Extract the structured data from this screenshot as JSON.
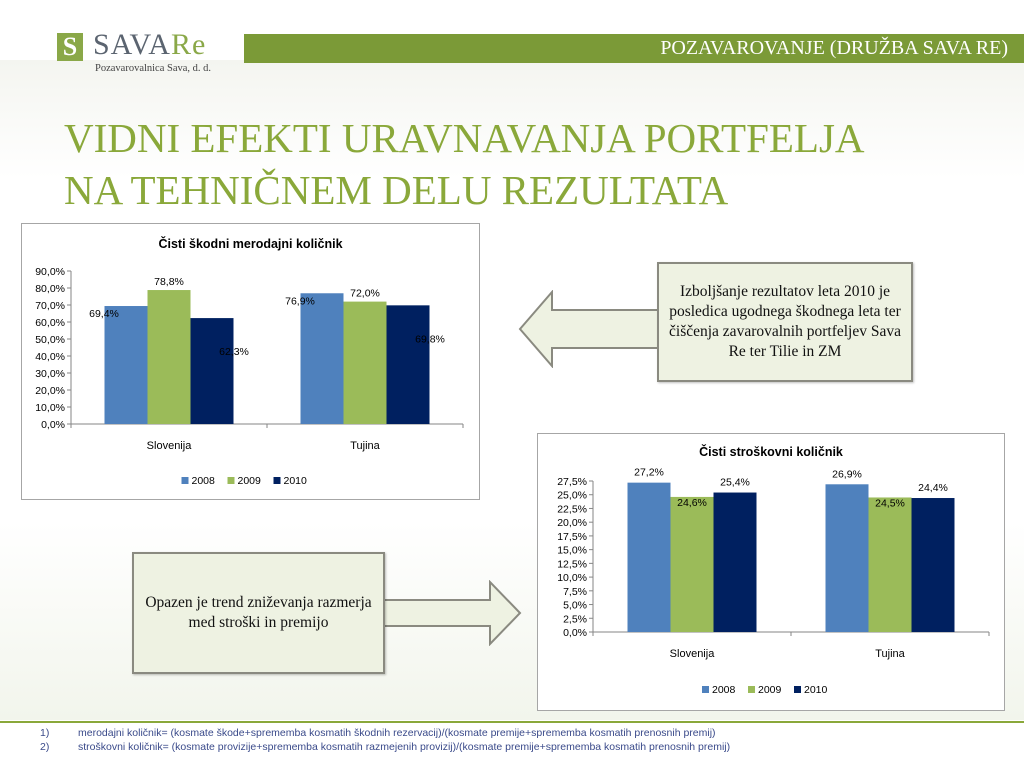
{
  "header": {
    "logo_mark": "S",
    "logo_word_main": "SAVA",
    "logo_word_re": "Re",
    "logo_subtitle": "Pozavarovalnica Sava, d. d.",
    "section_label": "POZAVAROVANJE (DRUŽBA SAVA RE)"
  },
  "title_lines": [
    "VIDNI EFEKTI URAVNAVANJA PORTFELJA",
    "NA TEHNIČNEM DELU REZULTATA"
  ],
  "callouts": {
    "right": "Izboljšanje rezultatov leta 2010 je posledica ugodnega škodnega leta ter čiščenja zavarovalnih portfeljev Sava Re ter Tilie in ZM",
    "left": "Opazen je trend zniževanja razmerja med stroški in premijo"
  },
  "footnotes": [
    {
      "num": "1)",
      "text": "merodajni količnik= (kosmate škode+sprememba kosmatih škodnih rezervacij)/(kosmate premije+sprememba kosmatih prenosnih premij)"
    },
    {
      "num": "2)",
      "text": "stroškovni količnik= (kosmate provizije+sprememba kosmatih razmejenih provizij)/(kosmate premije+sprememba kosmatih prenosnih premij)"
    }
  ],
  "colors": {
    "s2008": "#4f81bd",
    "s2009": "#9bbb59",
    "s2010": "#002060",
    "accent": "#8aa83a"
  },
  "chart_data": [
    {
      "type": "bar",
      "title": "Čisti škodni merodajni količnik",
      "categories": [
        "Slovenija",
        "Tujina"
      ],
      "series": [
        {
          "name": "2008",
          "values": [
            69.4,
            76.9
          ],
          "labels": [
            "69,4%",
            "76,9%"
          ]
        },
        {
          "name": "2009",
          "values": [
            78.8,
            72.0
          ],
          "labels": [
            "78,8%",
            "72,0%"
          ]
        },
        {
          "name": "2010",
          "values": [
            62.3,
            69.8
          ],
          "labels": [
            "62,3%",
            "69,8%"
          ]
        }
      ],
      "ylim": [
        0,
        90
      ],
      "yticks": [
        0,
        10,
        20,
        30,
        40,
        50,
        60,
        70,
        80,
        90
      ],
      "ytick_labels": [
        "0,0%",
        "10,0%",
        "20,0%",
        "30,0%",
        "40,0%",
        "50,0%",
        "60,0%",
        "70,0%",
        "80,0%",
        "90,0%"
      ],
      "legend": "bottom",
      "grid": false
    },
    {
      "type": "bar",
      "title": "Čisti stroškovni količnik",
      "categories": [
        "Slovenija",
        "Tujina"
      ],
      "series": [
        {
          "name": "2008",
          "values": [
            27.2,
            26.9
          ],
          "labels": [
            "27,2%",
            "26,9%"
          ]
        },
        {
          "name": "2009",
          "values": [
            24.6,
            24.5
          ],
          "labels": [
            "24,6%",
            "24,5%"
          ]
        },
        {
          "name": "2010",
          "values": [
            25.4,
            24.4
          ],
          "labels": [
            "25,4%",
            "24,4%"
          ]
        }
      ],
      "ylim": [
        0,
        27.5
      ],
      "yticks": [
        0,
        2.5,
        5,
        7.5,
        10,
        12.5,
        15,
        17.5,
        20,
        22.5,
        25,
        27.5
      ],
      "ytick_labels": [
        "0,0%",
        "2,5%",
        "5,0%",
        "7,5%",
        "10,0%",
        "12,5%",
        "15,0%",
        "17,5%",
        "20,0%",
        "22,5%",
        "25,0%",
        "27,5%"
      ],
      "legend": "bottom",
      "grid": false
    }
  ]
}
